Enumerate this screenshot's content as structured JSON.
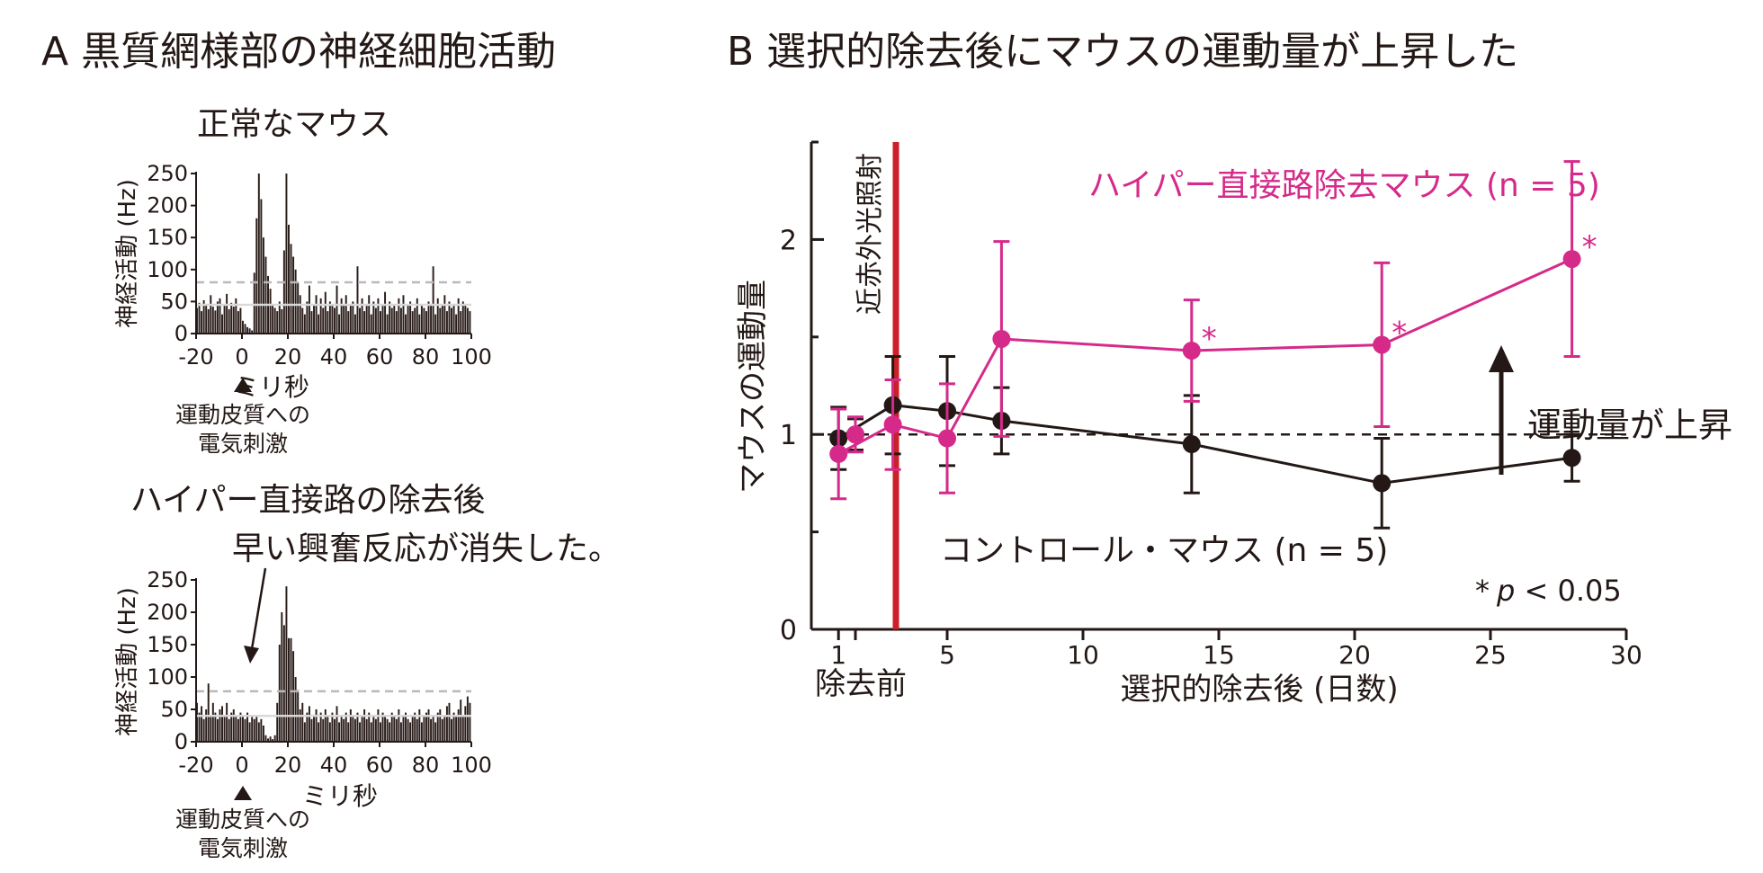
{
  "panel_a": {
    "title": "A 黒質網様部の神経細胞活動",
    "normal": {
      "title": "正常なマウス",
      "ylabel": "神経活動 (Hz)",
      "xlabel": "ミリ秒",
      "stim_label_1": "運動皮質への",
      "stim_label_2": "電気刺激"
    },
    "ablated": {
      "title": "ハイパー直接路の除去後",
      "annotation": "早い興奮反応が消失した。",
      "ylabel": "神経活動 (Hz)",
      "xlabel": "ミリ秒",
      "stim_label_1": "運動皮質への",
      "stim_label_2": "電気刺激"
    }
  },
  "panel_b": {
    "title": "B 選択的除去後にマウスの運動量が上昇した",
    "ylabel": "マウスの運動量",
    "xlabel": "選択的除去後 (日数)",
    "pre_label": "除去前",
    "laser_label": "近赤外光照射",
    "hyper_label": "ハイパー直接路除去マウス (n = 5)",
    "control_label": "コントロール・マウス (n = 5)",
    "arrow_label": "運動量が上昇",
    "sig_star": "*",
    "sig_p": "p",
    "sig_rest": " < 0.05"
  },
  "chart_data": [
    {
      "type": "bar",
      "title": "正常なマウス",
      "xlabel": "ミリ秒",
      "ylabel": "神経活動 (Hz)",
      "xlim": [
        -20,
        100
      ],
      "ylim": [
        0,
        250
      ],
      "x_ticks": [
        "-20",
        "0",
        "20",
        "40",
        "60",
        "80",
        "100"
      ],
      "y_ticks": [
        "0",
        "50",
        "100",
        "150",
        "200",
        "250"
      ],
      "bin_width": 1,
      "bin_start": -20,
      "baseline_mean": 45,
      "threshold_line": 80,
      "values": [
        40,
        48,
        35,
        52,
        44,
        38,
        60,
        42,
        36,
        50,
        55,
        30,
        45,
        62,
        38,
        48,
        42,
        55,
        35,
        40,
        20,
        15,
        10,
        8,
        5,
        95,
        180,
        250,
        210,
        150,
        120,
        90,
        70,
        45,
        40,
        35,
        50,
        38,
        130,
        250,
        170,
        140,
        120,
        100,
        80,
        60,
        40,
        30,
        50,
        75,
        35,
        45,
        60,
        30,
        55,
        40,
        65,
        35,
        50,
        45,
        40,
        75,
        30,
        55,
        45,
        60,
        35,
        45,
        50,
        30,
        105,
        40,
        55,
        35,
        45,
        60,
        30,
        50,
        40,
        55,
        35,
        45,
        65,
        30,
        50,
        40,
        45,
        35,
        55,
        40,
        60,
        30,
        45,
        50,
        35,
        40,
        55,
        30,
        45,
        40,
        35,
        50,
        45,
        105,
        30,
        55,
        40,
        45,
        60,
        35,
        50,
        40,
        45,
        30,
        55,
        35,
        50,
        45,
        40,
        35,
        20
      ]
    },
    {
      "type": "bar",
      "title": "ハイパー直接路の除去後",
      "xlabel": "ミリ秒",
      "ylabel": "神経活動 (Hz)",
      "xlim": [
        -20,
        100
      ],
      "ylim": [
        0,
        250
      ],
      "x_ticks": [
        "-20",
        "0",
        "20",
        "40",
        "60",
        "80",
        "100"
      ],
      "y_ticks": [
        "0",
        "50",
        "100",
        "150",
        "200",
        "250"
      ],
      "bin_width": 1,
      "bin_start": -20,
      "baseline_mean": 40,
      "threshold_line": 78,
      "values": [
        60,
        45,
        55,
        35,
        50,
        90,
        40,
        60,
        45,
        35,
        50,
        55,
        40,
        60,
        35,
        45,
        50,
        40,
        35,
        45,
        40,
        35,
        45,
        30,
        40,
        35,
        40,
        30,
        35,
        25,
        10,
        5,
        8,
        4,
        10,
        60,
        150,
        200,
        180,
        240,
        160,
        160,
        140,
        100,
        80,
        50,
        60,
        30,
        45,
        55,
        35,
        40,
        50,
        30,
        45,
        35,
        50,
        40,
        30,
        45,
        35,
        55,
        30,
        40,
        35,
        45,
        30,
        50,
        40,
        35,
        45,
        30,
        40,
        50,
        35,
        45,
        30,
        40,
        35,
        50,
        30,
        45,
        40,
        35,
        30,
        45,
        40,
        35,
        50,
        30,
        40,
        45,
        35,
        30,
        40,
        45,
        35,
        50,
        30,
        40,
        45,
        50,
        35,
        40,
        30,
        45,
        50,
        35,
        40,
        55,
        60,
        35,
        45,
        40,
        50,
        65,
        40,
        55,
        70,
        60,
        45
      ]
    },
    {
      "type": "line",
      "title": "選択的除去後にマウスの運動量が上昇した",
      "xlabel": "選択的除去後 (日数)",
      "ylabel": "マウスの運動量",
      "xlim": [
        0,
        30
      ],
      "ylim": [
        0,
        2.5
      ],
      "x_ticks": [
        "1",
        "5",
        "10",
        "15",
        "20",
        "25",
        "30"
      ],
      "y_ticks": [
        "0",
        "1",
        "2"
      ],
      "reference_line": 1,
      "series": [
        {
          "name": "コントロール・マウス (n = 5)",
          "color": "#231815",
          "pre": {
            "y": 1.0,
            "err": 0.08
          },
          "x": [
            1,
            3,
            5,
            7,
            14,
            21,
            28
          ],
          "y": [
            0.98,
            1.15,
            1.12,
            1.07,
            0.95,
            0.75,
            0.88
          ],
          "err": [
            0.16,
            0.25,
            0.28,
            0.17,
            0.25,
            0.23,
            0.12
          ]
        },
        {
          "name": "ハイパー直接路除去マウス (n = 5)",
          "color": "#d62a8a",
          "pre": {
            "y": 1.0,
            "err": 0.09
          },
          "x": [
            1,
            3,
            5,
            7,
            14,
            21,
            28
          ],
          "y": [
            0.9,
            1.05,
            0.98,
            1.49,
            1.43,
            1.46,
            1.9
          ],
          "err": [
            0.23,
            0.23,
            0.28,
            0.5,
            0.26,
            0.42,
            0.5
          ],
          "significant": [
            false,
            false,
            false,
            false,
            true,
            true,
            true
          ]
        }
      ]
    }
  ]
}
